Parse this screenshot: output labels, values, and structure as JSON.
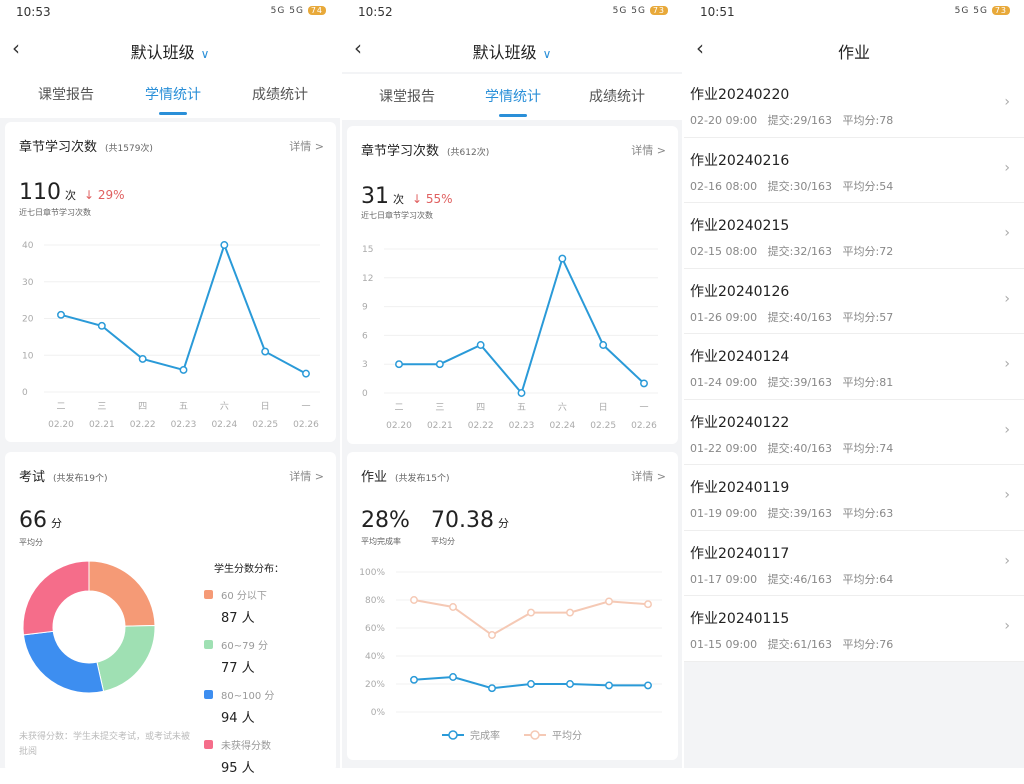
{
  "panels": [
    {
      "status": {
        "time": "10:53",
        "icons": "5G 5G",
        "battery": "74"
      },
      "header": {
        "title": "默认班级"
      },
      "tabs": [
        "课堂报告",
        "学情统计",
        "成绩统计"
      ],
      "active_tab": 1,
      "study": {
        "title": "章节学习次数",
        "subtitle": "(共1579次)",
        "more": "详情 >",
        "value": "110",
        "unit": "次",
        "change": "↓ 29%",
        "caption": "近七日章节学习次数"
      },
      "exam": {
        "title": "考试",
        "subtitle": "(共发布19个)",
        "more": "详情 >",
        "value": "66",
        "unit": "分",
        "caption": "平均分",
        "dist_title": "学生分数分布：",
        "note": "未获得分数：学生未提交考试，或考试未被批阅",
        "legend": [
          {
            "label": "60 分以下",
            "count": "87 人",
            "value": 87,
            "color": "#f59a76"
          },
          {
            "label": "60~79 分",
            "count": "77 人",
            "value": 77,
            "color": "#9fe0b3"
          },
          {
            "label": "80~100 分",
            "count": "94 人",
            "value": 94,
            "color": "#3d8ef0"
          },
          {
            "label": "未获得分数",
            "count": "95 人",
            "value": 95,
            "color": "#f56d8a"
          }
        ]
      }
    },
    {
      "status": {
        "time": "10:52",
        "icons": "5G 5G",
        "battery": "73"
      },
      "header": {
        "title": "默认班级"
      },
      "tabs": [
        "课堂报告",
        "学情统计",
        "成绩统计"
      ],
      "active_tab": 1,
      "study": {
        "title": "章节学习次数",
        "subtitle": "(共612次)",
        "more": "详情 >",
        "value": "31",
        "unit": "次",
        "change": "↓ 55%",
        "caption": "近七日章节学习次数"
      },
      "homework": {
        "title": "作业",
        "subtitle": "(共发布15个)",
        "more": "详情 >",
        "rate": "28%",
        "rate_caption": "平均完成率",
        "avg": "70.38",
        "avg_unit": "分",
        "avg_caption": "平均分"
      }
    },
    {
      "status": {
        "time": "10:51",
        "icons": "5G 5G",
        "battery": "73"
      },
      "header": {
        "title": "作业"
      },
      "items": [
        {
          "title": "作业20240220",
          "meta": "02-20 09:00   提交:29/163   平均分:78"
        },
        {
          "title": "作业20240216",
          "meta": "02-16 08:00   提交:30/163   平均分:54"
        },
        {
          "title": "作业20240215",
          "meta": "02-15 08:00   提交:32/163   平均分:72"
        },
        {
          "title": "作业20240126",
          "meta": "01-26 09:00   提交:40/163   平均分:57"
        },
        {
          "title": "作业20240124",
          "meta": "01-24 09:00   提交:39/163   平均分:81"
        },
        {
          "title": "作业20240122",
          "meta": "01-22 09:00   提交:40/163   平均分:74"
        },
        {
          "title": "作业20240119",
          "meta": "01-19 09:00   提交:39/163   平均分:63"
        },
        {
          "title": "作业20240117",
          "meta": "01-17 09:00   提交:46/163   平均分:64"
        },
        {
          "title": "作业20240115",
          "meta": "01-15 09:00   提交:61/163   平均分:76"
        }
      ]
    }
  ],
  "chart_data": [
    {
      "type": "line",
      "weekdays": [
        "二",
        "三",
        "四",
        "五",
        "六",
        "日",
        "一"
      ],
      "categories": [
        "02.20",
        "02.21",
        "02.22",
        "02.23",
        "02.24",
        "02.25",
        "02.26"
      ],
      "values": [
        21,
        18,
        9,
        6,
        40,
        11,
        5
      ],
      "ylim": [
        0,
        40
      ],
      "yticks": [
        "0",
        "10",
        "20",
        "30",
        "40"
      ],
      "color": "#2a9ad8",
      "grid": true
    },
    {
      "type": "line",
      "weekdays": [
        "二",
        "三",
        "四",
        "五",
        "六",
        "日",
        "一"
      ],
      "categories": [
        "02.20",
        "02.21",
        "02.22",
        "02.23",
        "02.24",
        "02.25",
        "02.26"
      ],
      "values": [
        3,
        3,
        5,
        0,
        14,
        5,
        1
      ],
      "ylim": [
        0,
        15
      ],
      "yticks": [
        "0",
        "3",
        "6",
        "9",
        "12",
        "15"
      ],
      "color": "#2a9ad8",
      "grid": true
    },
    {
      "type": "line",
      "ylim": [
        0,
        100
      ],
      "yticks": [
        "0%",
        "20%",
        "40%",
        "60%",
        "80%",
        "100%"
      ],
      "grid": true,
      "legend": "bottom",
      "series": [
        {
          "name": "完成率",
          "values": [
            23,
            25,
            17,
            20,
            20,
            19,
            19
          ],
          "color": "#2a9ad8"
        },
        {
          "name": "平均分",
          "values": [
            80,
            75,
            55,
            71,
            71,
            79,
            77
          ],
          "color": "#f5c9b5"
        }
      ]
    },
    {
      "type": "pie",
      "donut": true,
      "labels": [
        "60 分以下",
        "60~79 分",
        "80~100 分",
        "未获得分数"
      ],
      "values": [
        87,
        77,
        94,
        95
      ]
    }
  ]
}
